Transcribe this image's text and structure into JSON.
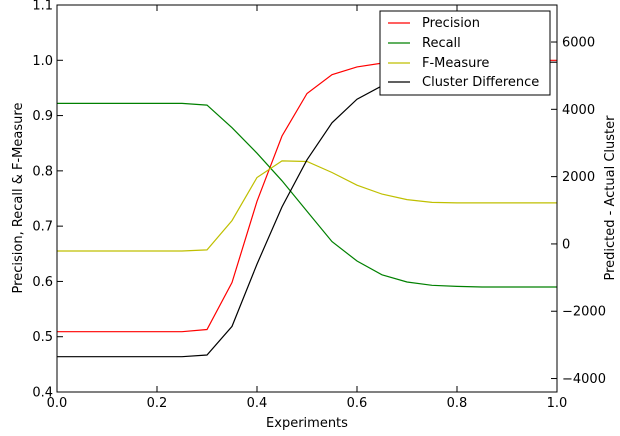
{
  "chart_data": {
    "type": "line",
    "xlabel": "Experiments",
    "ylabel": "Precision, Recall & F-Measure",
    "y2label": "Predicted - Actual Cluster",
    "xlim": [
      0.0,
      1.0
    ],
    "ylim": [
      0.4,
      1.1
    ],
    "y2lim": [
      -4400,
      7100
    ],
    "x_ticks": [
      "0.0",
      "0.2",
      "0.4",
      "0.6",
      "0.8",
      "1.0"
    ],
    "y_ticks": [
      "0.4",
      "0.5",
      "0.6",
      "0.7",
      "0.8",
      "0.9",
      "1.0",
      "1.1"
    ],
    "y2_ticks": [
      "−4000",
      "−2000",
      "0",
      "2000",
      "4000",
      "6000"
    ],
    "grid": false,
    "legend_position": "top-right",
    "series": [
      {
        "name": "Precision",
        "axis": "left",
        "color": "#ff0000",
        "x": [
          0.0,
          0.05,
          0.1,
          0.15,
          0.2,
          0.25,
          0.3,
          0.35,
          0.4,
          0.45,
          0.5,
          0.55,
          0.6,
          0.65,
          0.7,
          0.75,
          0.8,
          0.85,
          0.9,
          0.95,
          1.0
        ],
        "y": [
          0.509,
          0.509,
          0.509,
          0.509,
          0.509,
          0.509,
          0.513,
          0.598,
          0.745,
          0.863,
          0.94,
          0.974,
          0.988,
          0.995,
          0.998,
          0.999,
          1.0,
          1.0,
          1.0,
          1.0,
          1.0
        ]
      },
      {
        "name": "Recall",
        "axis": "left",
        "color": "#008000",
        "x": [
          0.0,
          0.05,
          0.1,
          0.15,
          0.2,
          0.25,
          0.3,
          0.35,
          0.4,
          0.45,
          0.5,
          0.55,
          0.6,
          0.65,
          0.7,
          0.75,
          0.8,
          0.85,
          0.9,
          0.95,
          1.0
        ],
        "y": [
          0.922,
          0.922,
          0.922,
          0.922,
          0.922,
          0.922,
          0.919,
          0.878,
          0.832,
          0.782,
          0.727,
          0.672,
          0.637,
          0.612,
          0.599,
          0.593,
          0.591,
          0.59,
          0.59,
          0.59,
          0.59
        ]
      },
      {
        "name": "F-Measure",
        "axis": "left",
        "color": "#bfbf00",
        "x": [
          0.0,
          0.05,
          0.1,
          0.15,
          0.2,
          0.25,
          0.3,
          0.35,
          0.4,
          0.45,
          0.5,
          0.55,
          0.6,
          0.65,
          0.7,
          0.75,
          0.8,
          0.85,
          0.9,
          0.95,
          1.0
        ],
        "y": [
          0.655,
          0.655,
          0.655,
          0.655,
          0.655,
          0.655,
          0.657,
          0.71,
          0.788,
          0.818,
          0.817,
          0.797,
          0.774,
          0.758,
          0.748,
          0.743,
          0.742,
          0.742,
          0.742,
          0.742,
          0.742
        ]
      },
      {
        "name": "Cluster Difference",
        "axis": "right",
        "color": "#000000",
        "x": [
          0.0,
          0.05,
          0.1,
          0.15,
          0.2,
          0.25,
          0.3,
          0.35,
          0.4,
          0.45,
          0.5,
          0.55,
          0.6,
          0.65,
          0.7,
          0.75,
          0.8,
          0.85,
          0.9,
          0.95,
          1.0
        ],
        "y": [
          -3350,
          -3350,
          -3350,
          -3350,
          -3350,
          -3350,
          -3300,
          -2450,
          -600,
          1100,
          2500,
          3600,
          4300,
          4700,
          5000,
          5200,
          5300,
          5350,
          5400,
          5400,
          5400
        ]
      }
    ]
  }
}
